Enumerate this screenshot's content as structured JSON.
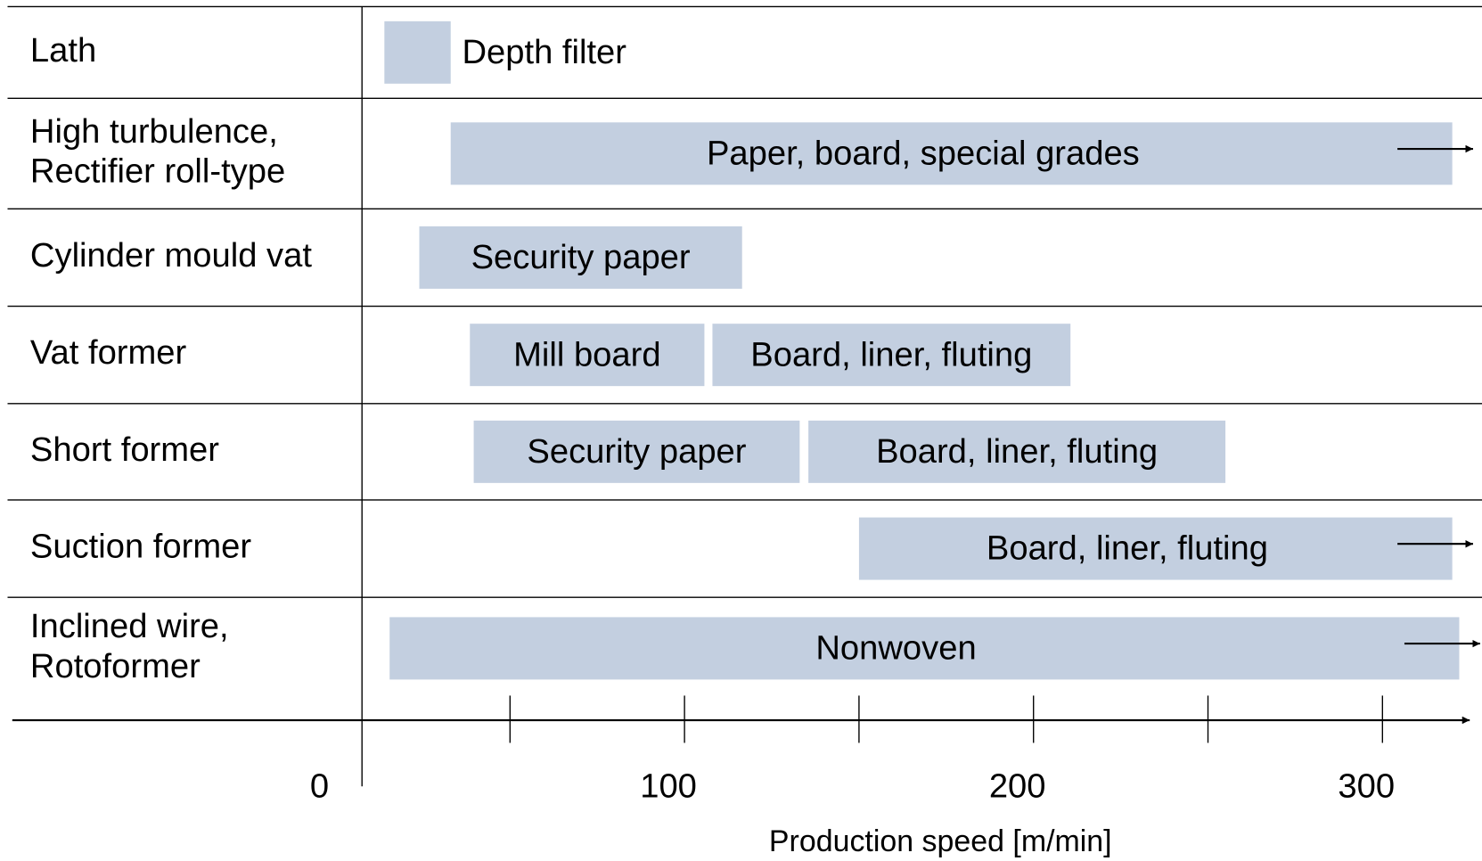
{
  "chart_data": {
    "type": "range_bar",
    "color": "#c3cfe0",
    "xlabel": "Production speed  [m/min]",
    "xlim": [
      0,
      325
    ],
    "xticks": [
      50,
      100,
      150,
      200,
      250,
      300
    ],
    "xtick_labels": [
      0,
      100,
      200,
      300
    ],
    "rows": [
      {
        "label": [
          "Lath"
        ],
        "bars": [
          {
            "name": "Depth filter",
            "range": [
              14,
              33
            ],
            "label_outside": true
          }
        ]
      },
      {
        "label": [
          "High turbulence,",
          "Rectifier roll-type"
        ],
        "bars": [
          {
            "name": "Paper, board, special grades",
            "range": [
              33,
              320
            ],
            "open_ended": true
          }
        ]
      },
      {
        "label": [
          "Cylinder mould vat"
        ],
        "bars": [
          {
            "name": "Security paper",
            "range": [
              24,
              116.5
            ]
          }
        ]
      },
      {
        "label": [
          "Vat former"
        ],
        "bars": [
          {
            "name": "Mill board",
            "range": [
              38.5,
              105.7
            ]
          },
          {
            "name": "Board, liner, fluting",
            "range": [
              108,
              210.6
            ]
          }
        ]
      },
      {
        "label": [
          "Short former"
        ],
        "bars": [
          {
            "name": "Security paper",
            "range": [
              39.6,
              133
            ]
          },
          {
            "name": "Board, liner, fluting",
            "range": [
              135.5,
              255
            ]
          }
        ]
      },
      {
        "label": [
          "Suction former"
        ],
        "bars": [
          {
            "name": "Board, liner, fluting",
            "range": [
              150,
              320
            ],
            "open_ended": true
          }
        ]
      },
      {
        "label": [
          "Inclined wire,",
          "Rotoformer"
        ],
        "bars": [
          {
            "name": "Nonwoven",
            "range": [
              15.5,
              322
            ],
            "open_ended": true
          }
        ]
      }
    ]
  }
}
